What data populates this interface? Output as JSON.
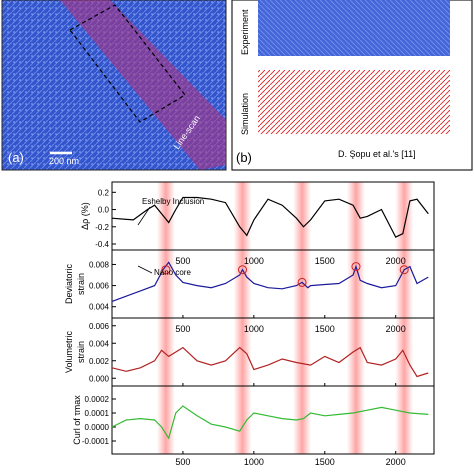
{
  "panel_a": {
    "label": "(a)",
    "scalebar": "200 nm",
    "line_scan": "Line-scan"
  },
  "panel_b": {
    "label": "(b)",
    "label_experiment": "Experiment",
    "label_simulation": "Simulation",
    "citation": "D. Şopu et al.'s [11]"
  },
  "chart_data": [
    {
      "type": "line",
      "ylabel": "Δρ (%)",
      "y_ticks": [
        "0.2",
        "0.0",
        "-0.2",
        "-0.4"
      ],
      "ylim": [
        -0.4,
        0.25
      ],
      "color": "#000000",
      "annotation": "Eshelby Inclusion",
      "series": [
        {
          "x": [
            0,
            150,
            250,
            300,
            350,
            400,
            450,
            500,
            600,
            700,
            800,
            900,
            950,
            1000,
            1100,
            1200,
            1300,
            1350,
            1400,
            1500,
            1600,
            1700,
            1750,
            1800,
            1900,
            2000,
            2050,
            2100,
            2150,
            2230
          ],
          "y": [
            -0.1,
            -0.12,
            0.0,
            0.05,
            -0.05,
            -0.15,
            0.0,
            0.14,
            0.14,
            0.12,
            0.08,
            -0.2,
            -0.3,
            -0.12,
            0.12,
            0.05,
            -0.1,
            -0.2,
            -0.12,
            0.1,
            0.12,
            0.05,
            -0.1,
            -0.08,
            0.0,
            -0.32,
            -0.28,
            0.1,
            0.12,
            -0.05
          ]
        }
      ]
    },
    {
      "type": "line",
      "ylabel": "Deviatoric strain",
      "y_ticks": [
        "0.008",
        "0.006",
        "0.004"
      ],
      "ylim": [
        0.0035,
        0.0088
      ],
      "x_ticks": [
        "500",
        "1000",
        "1500",
        "2000"
      ],
      "color": "#1a1a9a",
      "annotation": "Nano core",
      "series": [
        {
          "x": [
            0,
            100,
            200,
            300,
            360,
            400,
            450,
            500,
            600,
            700,
            800,
            900,
            920,
            950,
            1000,
            1100,
            1200,
            1300,
            1340,
            1380,
            1400,
            1500,
            1600,
            1700,
            1720,
            1750,
            1800,
            1900,
            2000,
            2060,
            2100,
            2150,
            2230
          ],
          "y": [
            0.0045,
            0.005,
            0.0055,
            0.006,
            0.0075,
            0.0082,
            0.007,
            0.0063,
            0.006,
            0.0058,
            0.0062,
            0.007,
            0.0075,
            0.0068,
            0.0062,
            0.0058,
            0.0057,
            0.006,
            0.0063,
            0.0058,
            0.006,
            0.0061,
            0.0062,
            0.007,
            0.0078,
            0.0065,
            0.0062,
            0.0058,
            0.006,
            0.0075,
            0.0078,
            0.0062,
            0.0068
          ]
        }
      ],
      "markers": [
        380,
        920,
        1340,
        1720,
        2060
      ]
    },
    {
      "type": "line",
      "ylabel": "Volumetric strain",
      "y_ticks": [
        "0.006",
        "0.004",
        "0.002",
        "0.000"
      ],
      "ylim": [
        -0.0002,
        0.0062
      ],
      "x_ticks": [
        "500",
        "1000",
        "1500",
        "2000"
      ],
      "color": "#b22222",
      "series": [
        {
          "x": [
            0,
            100,
            200,
            300,
            350,
            400,
            500,
            600,
            700,
            800,
            900,
            950,
            1000,
            1100,
            1200,
            1300,
            1400,
            1500,
            1600,
            1700,
            1750,
            1800,
            1900,
            2000,
            2050,
            2100,
            2150,
            2230
          ],
          "y": [
            0.0012,
            0.0008,
            0.0012,
            0.002,
            0.0032,
            0.0025,
            0.0035,
            0.002,
            0.0015,
            0.002,
            0.0035,
            0.0028,
            0.001,
            0.0015,
            0.0022,
            0.0018,
            0.0015,
            0.0025,
            0.0018,
            0.003,
            0.0035,
            0.0018,
            0.0015,
            0.0022,
            0.0032,
            0.0015,
            0.0002,
            0.0006
          ]
        }
      ]
    },
    {
      "type": "line",
      "ylabel": "Curl of τmax",
      "y_ticks": [
        "0.0002",
        "0.0001",
        "0.0000",
        "-0.0001"
      ],
      "ylim": [
        -0.00015,
        0.00025
      ],
      "x_ticks": [
        "500",
        "1000",
        "1500",
        "2000"
      ],
      "color": "#33bb33",
      "series": [
        {
          "x": [
            0,
            100,
            200,
            300,
            350,
            400,
            450,
            500,
            600,
            700,
            800,
            900,
            950,
            1000,
            1100,
            1200,
            1300,
            1350,
            1400,
            1500,
            1600,
            1700,
            1800,
            1900,
            2000,
            2100,
            2230
          ],
          "y": [
            0.0,
            5e-05,
            6e-05,
            5e-05,
            0.0,
            -8e-05,
            0.0001,
            0.00015,
            8e-05,
            2e-05,
            0.0,
            -3e-05,
            5e-05,
            0.0001,
            8e-05,
            6e-05,
            5e-05,
            6e-05,
            0.0001,
            8e-05,
            9e-05,
            0.0001,
            0.00012,
            0.00014,
            0.00012,
            0.0001,
            9e-05
          ]
        }
      ]
    }
  ],
  "highlight_bands_x": [
    380,
    920,
    1340,
    1720,
    2060
  ],
  "x_range": [
    0,
    2270
  ]
}
